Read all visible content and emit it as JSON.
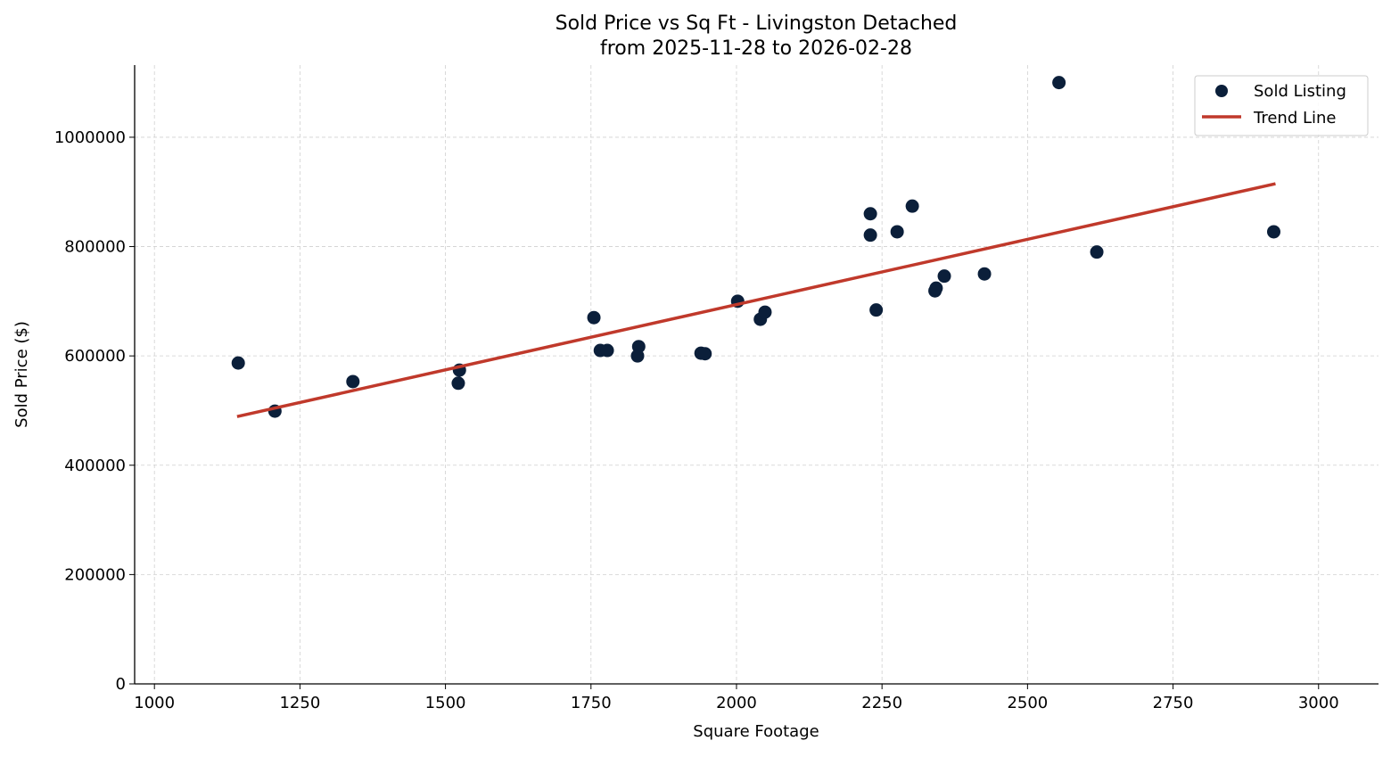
{
  "chart_data": {
    "type": "scatter",
    "title": "Sold Price vs Sq Ft - Livingston Detached",
    "subtitle": "from 2025-11-28 to 2026-02-28",
    "xlabel": "Square Footage",
    "ylabel": "Sold Price ($)",
    "xlim": [
      966,
      3103
    ],
    "ylim": [
      0,
      1132000
    ],
    "xticks": [
      1000,
      1250,
      1500,
      1750,
      2000,
      2250,
      2500,
      2750,
      3000
    ],
    "yticks": [
      0,
      200000,
      400000,
      600000,
      800000,
      1000000
    ],
    "grid": true,
    "legend_position": "top-right",
    "colors": {
      "points": "#0b1f3a",
      "trend": "#c0392b"
    },
    "series": [
      {
        "name": "Sold Listing",
        "type": "scatter",
        "x": [
          1144,
          1207,
          1341,
          1524,
          1522,
          1755,
          1766,
          1778,
          1832,
          1830,
          1939,
          1946,
          2002,
          2041,
          2049,
          2230,
          2230,
          2240,
          2276,
          2302,
          2341,
          2343,
          2357,
          2426,
          2554,
          2619,
          2923
        ],
        "y": [
          587000,
          499000,
          553000,
          574000,
          550000,
          670000,
          610000,
          610000,
          617000,
          600000,
          605000,
          604000,
          700000,
          667000,
          680000,
          860000,
          821000,
          684000,
          827000,
          874000,
          719000,
          724000,
          746000,
          750000,
          1100000,
          790000,
          827000
        ]
      },
      {
        "name": "Trend Line",
        "type": "line",
        "x": [
          1142,
          2926
        ],
        "y": [
          489000,
          915000
        ]
      }
    ]
  }
}
